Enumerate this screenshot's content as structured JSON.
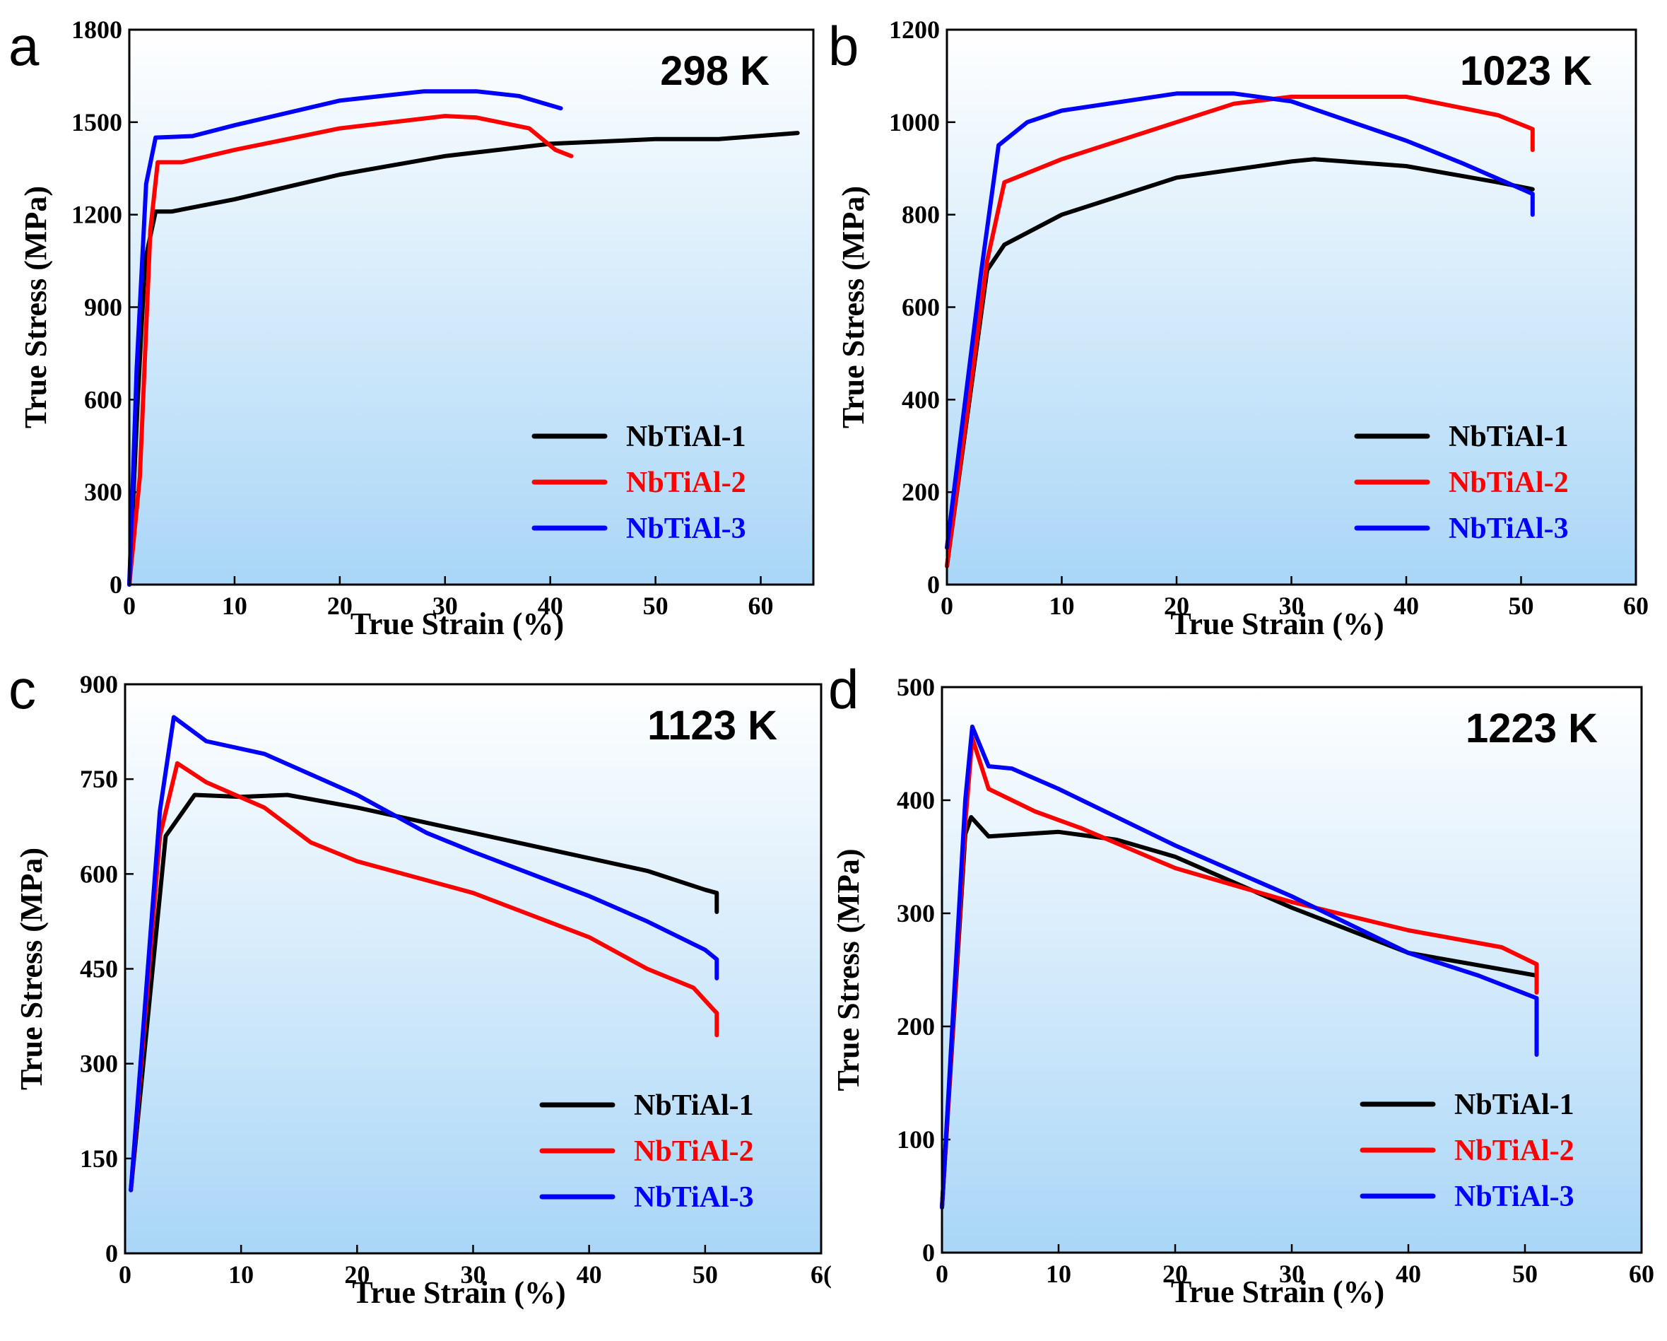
{
  "chart_data": [
    {
      "type": "line",
      "panel": "a",
      "title": "298 K",
      "xlabel": "True Strain (%)",
      "ylabel": "True Stress (MPa)",
      "xlim": [
        0,
        65
      ],
      "ylim": [
        0,
        1800
      ],
      "xticks": [
        "0",
        "10",
        "20",
        "30",
        "40",
        "50",
        "60"
      ],
      "yticks": [
        "0",
        "300",
        "600",
        "900",
        "1200",
        "1500",
        "1800"
      ],
      "legend_position": "bottom-right",
      "series": [
        {
          "name": "NbTiAl-1",
          "color": "#000000",
          "x": [
            0,
            0.8,
            1.5,
            2.5,
            4,
            10,
            20,
            30,
            40,
            50,
            56,
            63.5
          ],
          "y": [
            0,
            600,
            1050,
            1210,
            1210,
            1250,
            1330,
            1390,
            1430,
            1445,
            1445,
            1465
          ]
        },
        {
          "name": "NbTiAl-2",
          "color": "#ff0000",
          "x": [
            0,
            1,
            2,
            2.7,
            5,
            10,
            20,
            30,
            33,
            38,
            40.5,
            42
          ],
          "y": [
            0,
            350,
            1150,
            1370,
            1370,
            1410,
            1480,
            1520,
            1515,
            1480,
            1410,
            1390
          ]
        },
        {
          "name": "NbTiAl-3",
          "color": "#0000ff",
          "x": [
            0,
            0.7,
            1.6,
            2.5,
            6,
            10,
            20,
            28,
            33,
            37,
            41
          ],
          "y": [
            0,
            700,
            1300,
            1450,
            1455,
            1490,
            1570,
            1600,
            1600,
            1585,
            1545
          ]
        }
      ]
    },
    {
      "type": "line",
      "panel": "b",
      "title": "1023 K",
      "xlabel": "True Strain (%)",
      "ylabel": "True Stress (MPa)",
      "xlim": [
        0,
        60
      ],
      "ylim": [
        0,
        1200
      ],
      "xticks": [
        "0",
        "10",
        "20",
        "30",
        "40",
        "50",
        "60"
      ],
      "yticks": [
        "0",
        "200",
        "400",
        "600",
        "800",
        "1000",
        "1200"
      ],
      "legend_position": "bottom-right",
      "series": [
        {
          "name": "NbTiAl-1",
          "color": "#000000",
          "x": [
            0,
            3.5,
            5,
            10,
            20,
            30,
            32,
            40,
            48,
            51
          ],
          "y": [
            40,
            680,
            735,
            800,
            880,
            915,
            920,
            905,
            870,
            855
          ]
        },
        {
          "name": "NbTiAl-2",
          "color": "#ff0000",
          "x": [
            0,
            3.5,
            5,
            10,
            20,
            25,
            30,
            40,
            48,
            51,
            51
          ],
          "y": [
            40,
            700,
            870,
            920,
            1000,
            1040,
            1055,
            1055,
            1015,
            985,
            940
          ]
        },
        {
          "name": "NbTiAl-3",
          "color": "#0000ff",
          "x": [
            0,
            3,
            4.5,
            7,
            10,
            20,
            25,
            30,
            40,
            45,
            51,
            51
          ],
          "y": [
            80,
            680,
            950,
            1000,
            1025,
            1062,
            1062,
            1045,
            960,
            910,
            845,
            800
          ]
        }
      ]
    },
    {
      "type": "line",
      "panel": "c",
      "title": "1123 K",
      "xlabel": "True Strain (%)",
      "ylabel": "True Stress (MPa)",
      "xlim": [
        0,
        60
      ],
      "ylim": [
        0,
        900
      ],
      "xticks": [
        "0",
        "10",
        "20",
        "30",
        "40",
        "50",
        "6("
      ],
      "yticks": [
        "0",
        "150",
        "300",
        "450",
        "600",
        "750",
        "900"
      ],
      "legend_position": "bottom-right",
      "series": [
        {
          "name": "NbTiAl-1",
          "color": "#000000",
          "x": [
            0.5,
            3.5,
            6,
            10,
            14,
            20,
            30,
            40,
            45,
            50,
            51,
            51
          ],
          "y": [
            100,
            660,
            725,
            722,
            725,
            705,
            665,
            625,
            605,
            575,
            570,
            540
          ]
        },
        {
          "name": "NbTiAl-2",
          "color": "#ff0000",
          "x": [
            0.5,
            3,
            4.5,
            7,
            12,
            16,
            20,
            30,
            40,
            45,
            49,
            50.5,
            51,
            51
          ],
          "y": [
            100,
            660,
            775,
            745,
            705,
            650,
            620,
            570,
            500,
            450,
            420,
            390,
            380,
            345
          ]
        },
        {
          "name": "NbTiAl-3",
          "color": "#0000ff",
          "x": [
            0.5,
            3,
            4.2,
            7,
            12,
            20,
            26,
            30,
            40,
            45,
            50,
            51,
            51
          ],
          "y": [
            100,
            700,
            848,
            810,
            790,
            725,
            665,
            635,
            565,
            525,
            480,
            465,
            435
          ]
        }
      ]
    },
    {
      "type": "line",
      "panel": "d",
      "title": "1223 K",
      "xlabel": "True Strain (%)",
      "ylabel": "True Stress (MPa)",
      "xlim": [
        0,
        60
      ],
      "ylim": [
        0,
        500
      ],
      "xticks": [
        "0",
        "10",
        "20",
        "30",
        "40",
        "50",
        "60"
      ],
      "yticks": [
        "0",
        "100",
        "200",
        "300",
        "400",
        "500"
      ],
      "legend_position": "bottom-right",
      "series": [
        {
          "name": "NbTiAl-1",
          "color": "#000000",
          "x": [
            0,
            2,
            2.5,
            4,
            10,
            15,
            20,
            30,
            40,
            51
          ],
          "y": [
            40,
            370,
            385,
            368,
            372,
            365,
            350,
            305,
            265,
            245
          ]
        },
        {
          "name": "NbTiAl-2",
          "color": "#ff0000",
          "x": [
            0,
            2,
            2.6,
            4,
            8,
            12,
            20,
            30,
            40,
            48,
            51,
            51
          ],
          "y": [
            40,
            380,
            455,
            410,
            390,
            375,
            340,
            310,
            285,
            270,
            255,
            230
          ]
        },
        {
          "name": "NbTiAl-3",
          "color": "#0000ff",
          "x": [
            0,
            2,
            2.6,
            4,
            6,
            10,
            20,
            30,
            40,
            46,
            51,
            51
          ],
          "y": [
            40,
            400,
            465,
            430,
            428,
            410,
            360,
            315,
            265,
            245,
            225,
            175
          ]
        }
      ]
    }
  ]
}
